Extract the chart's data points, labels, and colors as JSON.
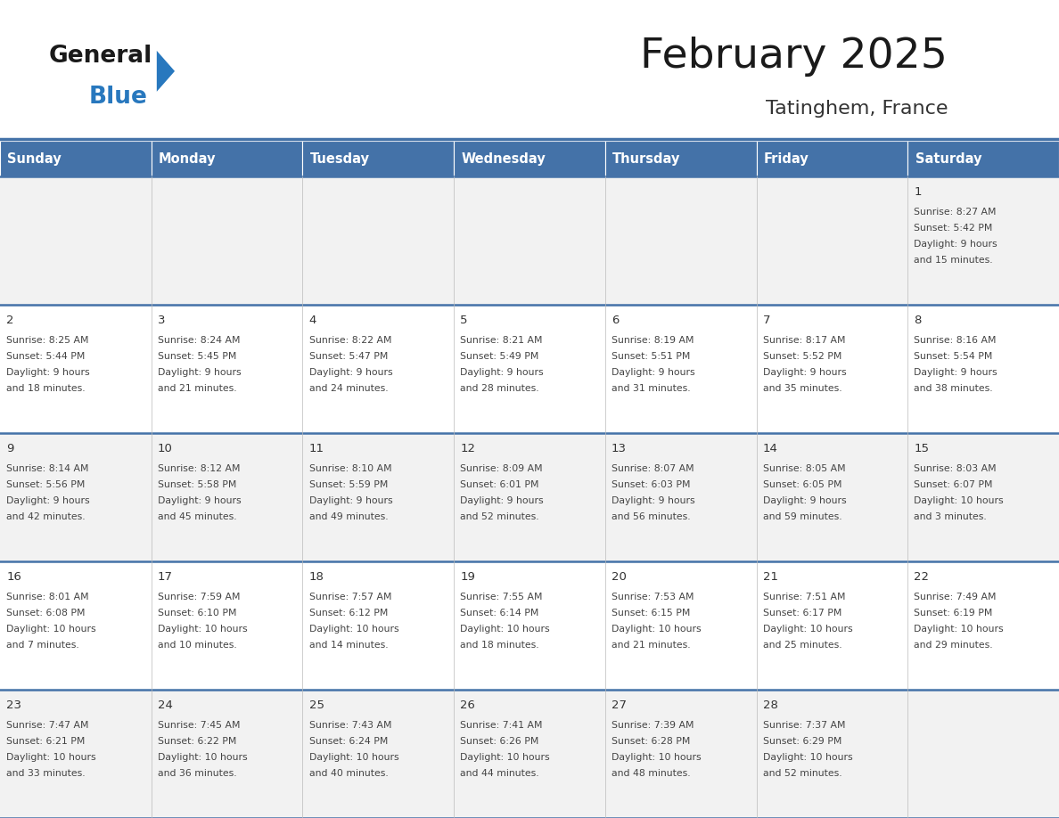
{
  "title": "February 2025",
  "subtitle": "Tatinghem, France",
  "header_color": "#4472A8",
  "header_text_color": "#FFFFFF",
  "day_names": [
    "Sunday",
    "Monday",
    "Tuesday",
    "Wednesday",
    "Thursday",
    "Friday",
    "Saturday"
  ],
  "grid_line_color": "#4472A8",
  "cell_bg_gray": "#F2F2F2",
  "cell_bg_white": "#FFFFFF",
  "day_num_color": "#333333",
  "info_text_color": "#444444",
  "logo_general_color": "#1A1A1A",
  "logo_blue_color": "#2878BE",
  "title_color": "#1A1A1A",
  "subtitle_color": "#333333",
  "calendar_data": [
    {
      "day": 1,
      "col": 6,
      "row": 0,
      "sunrise": "8:27 AM",
      "sunset": "5:42 PM",
      "daylight": "9 hours and 15 minutes."
    },
    {
      "day": 2,
      "col": 0,
      "row": 1,
      "sunrise": "8:25 AM",
      "sunset": "5:44 PM",
      "daylight": "9 hours and 18 minutes."
    },
    {
      "day": 3,
      "col": 1,
      "row": 1,
      "sunrise": "8:24 AM",
      "sunset": "5:45 PM",
      "daylight": "9 hours and 21 minutes."
    },
    {
      "day": 4,
      "col": 2,
      "row": 1,
      "sunrise": "8:22 AM",
      "sunset": "5:47 PM",
      "daylight": "9 hours and 24 minutes."
    },
    {
      "day": 5,
      "col": 3,
      "row": 1,
      "sunrise": "8:21 AM",
      "sunset": "5:49 PM",
      "daylight": "9 hours and 28 minutes."
    },
    {
      "day": 6,
      "col": 4,
      "row": 1,
      "sunrise": "8:19 AM",
      "sunset": "5:51 PM",
      "daylight": "9 hours and 31 minutes."
    },
    {
      "day": 7,
      "col": 5,
      "row": 1,
      "sunrise": "8:17 AM",
      "sunset": "5:52 PM",
      "daylight": "9 hours and 35 minutes."
    },
    {
      "day": 8,
      "col": 6,
      "row": 1,
      "sunrise": "8:16 AM",
      "sunset": "5:54 PM",
      "daylight": "9 hours and 38 minutes."
    },
    {
      "day": 9,
      "col": 0,
      "row": 2,
      "sunrise": "8:14 AM",
      "sunset": "5:56 PM",
      "daylight": "9 hours and 42 minutes."
    },
    {
      "day": 10,
      "col": 1,
      "row": 2,
      "sunrise": "8:12 AM",
      "sunset": "5:58 PM",
      "daylight": "9 hours and 45 minutes."
    },
    {
      "day": 11,
      "col": 2,
      "row": 2,
      "sunrise": "8:10 AM",
      "sunset": "5:59 PM",
      "daylight": "9 hours and 49 minutes."
    },
    {
      "day": 12,
      "col": 3,
      "row": 2,
      "sunrise": "8:09 AM",
      "sunset": "6:01 PM",
      "daylight": "9 hours and 52 minutes."
    },
    {
      "day": 13,
      "col": 4,
      "row": 2,
      "sunrise": "8:07 AM",
      "sunset": "6:03 PM",
      "daylight": "9 hours and 56 minutes."
    },
    {
      "day": 14,
      "col": 5,
      "row": 2,
      "sunrise": "8:05 AM",
      "sunset": "6:05 PM",
      "daylight": "9 hours and 59 minutes."
    },
    {
      "day": 15,
      "col": 6,
      "row": 2,
      "sunrise": "8:03 AM",
      "sunset": "6:07 PM",
      "daylight": "10 hours and 3 minutes."
    },
    {
      "day": 16,
      "col": 0,
      "row": 3,
      "sunrise": "8:01 AM",
      "sunset": "6:08 PM",
      "daylight": "10 hours and 7 minutes."
    },
    {
      "day": 17,
      "col": 1,
      "row": 3,
      "sunrise": "7:59 AM",
      "sunset": "6:10 PM",
      "daylight": "10 hours and 10 minutes."
    },
    {
      "day": 18,
      "col": 2,
      "row": 3,
      "sunrise": "7:57 AM",
      "sunset": "6:12 PM",
      "daylight": "10 hours and 14 minutes."
    },
    {
      "day": 19,
      "col": 3,
      "row": 3,
      "sunrise": "7:55 AM",
      "sunset": "6:14 PM",
      "daylight": "10 hours and 18 minutes."
    },
    {
      "day": 20,
      "col": 4,
      "row": 3,
      "sunrise": "7:53 AM",
      "sunset": "6:15 PM",
      "daylight": "10 hours and 21 minutes."
    },
    {
      "day": 21,
      "col": 5,
      "row": 3,
      "sunrise": "7:51 AM",
      "sunset": "6:17 PM",
      "daylight": "10 hours and 25 minutes."
    },
    {
      "day": 22,
      "col": 6,
      "row": 3,
      "sunrise": "7:49 AM",
      "sunset": "6:19 PM",
      "daylight": "10 hours and 29 minutes."
    },
    {
      "day": 23,
      "col": 0,
      "row": 4,
      "sunrise": "7:47 AM",
      "sunset": "6:21 PM",
      "daylight": "10 hours and 33 minutes."
    },
    {
      "day": 24,
      "col": 1,
      "row": 4,
      "sunrise": "7:45 AM",
      "sunset": "6:22 PM",
      "daylight": "10 hours and 36 minutes."
    },
    {
      "day": 25,
      "col": 2,
      "row": 4,
      "sunrise": "7:43 AM",
      "sunset": "6:24 PM",
      "daylight": "10 hours and 40 minutes."
    },
    {
      "day": 26,
      "col": 3,
      "row": 4,
      "sunrise": "7:41 AM",
      "sunset": "6:26 PM",
      "daylight": "10 hours and 44 minutes."
    },
    {
      "day": 27,
      "col": 4,
      "row": 4,
      "sunrise": "7:39 AM",
      "sunset": "6:28 PM",
      "daylight": "10 hours and 48 minutes."
    },
    {
      "day": 28,
      "col": 5,
      "row": 4,
      "sunrise": "7:37 AM",
      "sunset": "6:29 PM",
      "daylight": "10 hours and 52 minutes."
    }
  ],
  "num_rows": 5
}
